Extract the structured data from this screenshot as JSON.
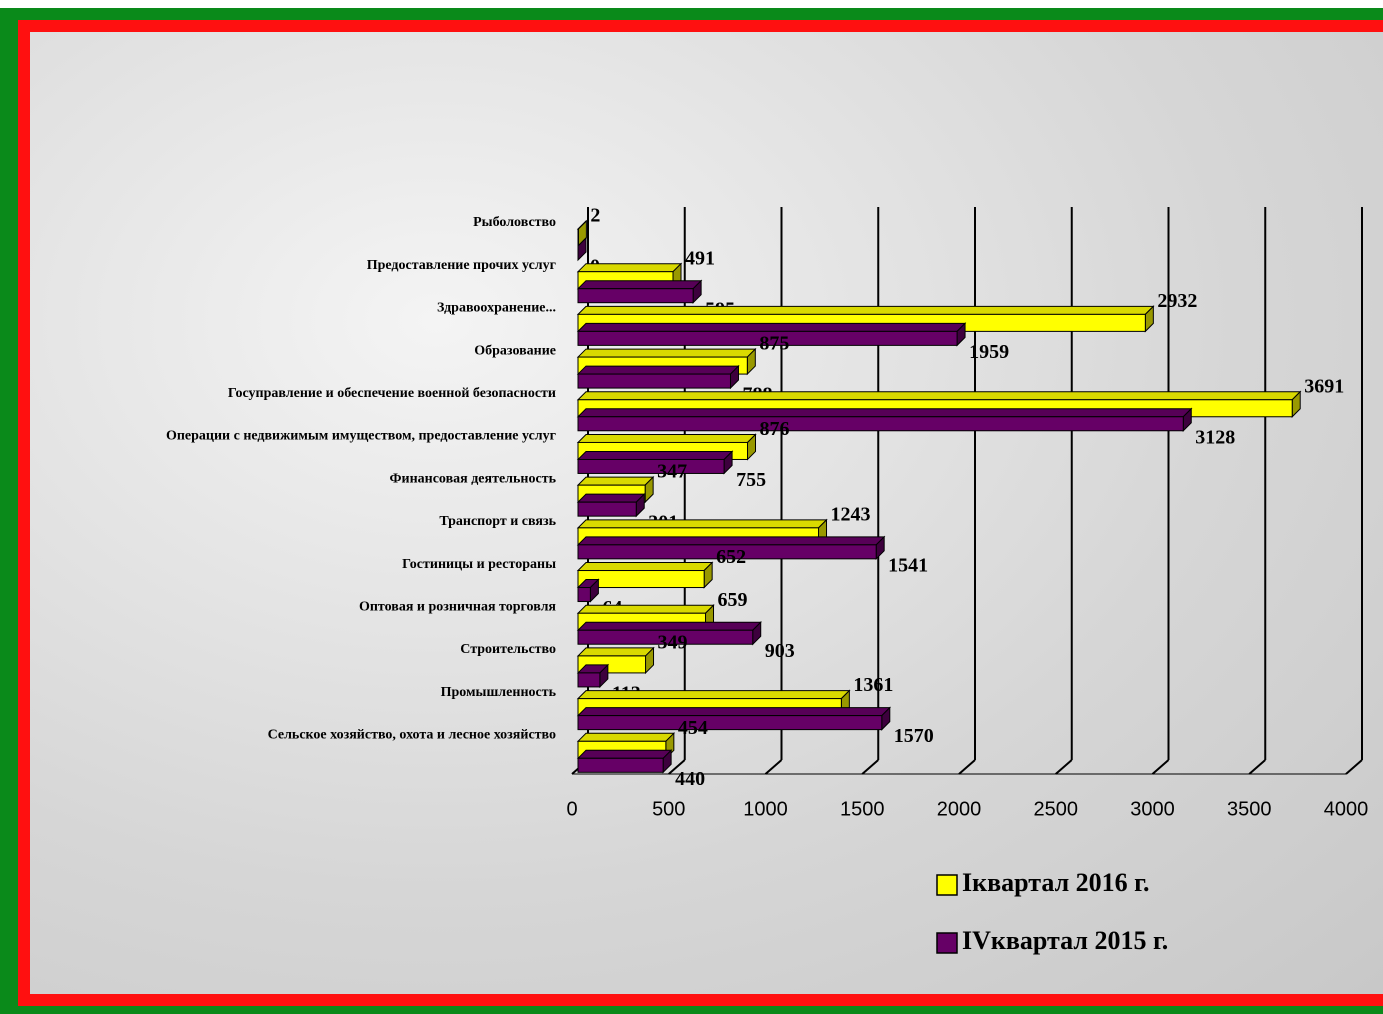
{
  "chart_data": {
    "type": "hbar3d",
    "categories": [
      "Рыболовство",
      "Предоставление прочих  услуг",
      "Здравоохранение...",
      "Образование",
      "Госуправление и обеспечение военной безопасности",
      "Операции с недвижимым имуществом, предоставление услуг",
      "Финансовая деятельность",
      "Транспорт и связь",
      "Гостиницы и рестораны",
      "Оптовая и розничная торговля",
      "Строительство",
      "Промышленность",
      "Сельское хозяйство, охота и лесное хозяйство"
    ],
    "series": [
      {
        "name": "Iквартал 2016 г.",
        "color": "#ffff00",
        "values": [
          2,
          491,
          2932,
          875,
          3691,
          876,
          347,
          1243,
          652,
          659,
          349,
          1361,
          454
        ]
      },
      {
        "name": "IVквартал 2015 г.",
        "color": "#660066",
        "values": [
          0,
          595,
          1959,
          788,
          3128,
          755,
          301,
          1541,
          64,
          903,
          113,
          1570,
          440
        ]
      }
    ],
    "xlim": [
      0,
      4000
    ],
    "xticks": [
      0,
      500,
      1000,
      1500,
      2000,
      2500,
      3000,
      3500,
      4000
    ],
    "grid": true
  }
}
